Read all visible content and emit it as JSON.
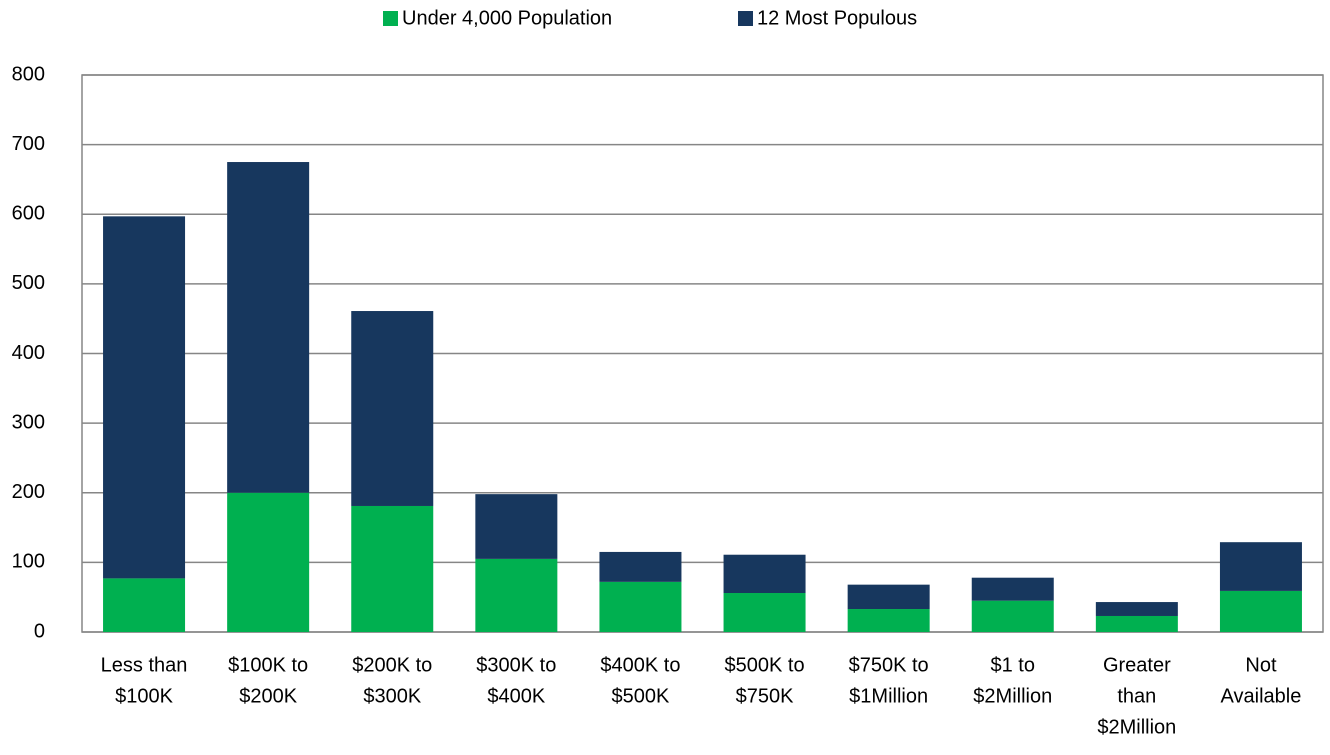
{
  "chart_data": {
    "type": "stacked_bar",
    "categories": [
      [
        "Less than",
        "$100K"
      ],
      [
        "$100K to",
        "$200K"
      ],
      [
        "$200K to",
        "$300K"
      ],
      [
        "$300K to",
        "$400K"
      ],
      [
        "$400K to",
        "$500K"
      ],
      [
        "$500K to",
        "$750K"
      ],
      [
        "$750K to",
        "$1Million"
      ],
      [
        "$1 to",
        "$2Million"
      ],
      [
        "Greater",
        "than",
        "$2Million"
      ],
      [
        "Not",
        "Available"
      ]
    ],
    "series": [
      {
        "name": "Under 4,000 Population",
        "color": "#00b050",
        "values": [
          77,
          200,
          181,
          105,
          72,
          56,
          33,
          45,
          23,
          59
        ]
      },
      {
        "name": "12 Most Populous",
        "color": "#17375e",
        "values": [
          520,
          475,
          280,
          93,
          43,
          55,
          35,
          33,
          20,
          70
        ]
      }
    ],
    "ylim": [
      0,
      800
    ],
    "yticks": [
      0,
      100,
      200,
      300,
      400,
      500,
      600,
      700,
      800
    ],
    "grid": true,
    "legend": "top"
  }
}
